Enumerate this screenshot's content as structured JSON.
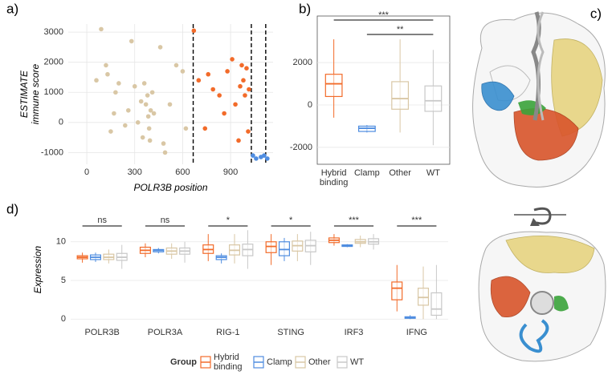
{
  "chart_data": [
    {
      "type": "scatter",
      "panel_label": "a)",
      "x_label": "POLR3B position",
      "y_label": [
        "ESTIMATE",
        "immune score"
      ],
      "xlim": [
        -116,
        1166
      ],
      "ylim": [
        -1390,
        3270
      ],
      "xticks": [
        0,
        300,
        600,
        900
      ],
      "yticks": [
        -1000,
        0,
        1000,
        2000,
        3000
      ],
      "grid": true,
      "vlines": [
        666,
        1030,
        1120
      ],
      "series": [
        {
          "color": "#d9c7a5",
          "x": [
            60,
            90,
            120,
            130,
            150,
            170,
            180,
            200,
            240,
            260,
            280,
            300,
            320,
            340,
            350,
            360,
            370,
            380,
            385,
            390,
            395,
            400,
            410,
            420,
            460,
            480,
            490,
            520,
            560,
            600,
            620
          ],
          "values": [
            1400,
            3100,
            1900,
            1600,
            -300,
            300,
            1000,
            1300,
            -100,
            400,
            2700,
            1200,
            0,
            700,
            -500,
            1300,
            600,
            900,
            200,
            -200,
            -600,
            400,
            1000,
            300,
            2500,
            -700,
            -1000,
            600,
            1900,
            1700,
            -200
          ]
        },
        {
          "color": "#f26b2a",
          "x": [
            670,
            700,
            740,
            760,
            790,
            830,
            860,
            880,
            910,
            930,
            950,
            960,
            970,
            980,
            990,
            1000,
            1010,
            1015
          ],
          "values": [
            3050,
            1400,
            -200,
            1600,
            1100,
            900,
            300,
            1700,
            2100,
            600,
            -600,
            1200,
            1900,
            1400,
            900,
            1800,
            -300,
            1100
          ]
        },
        {
          "color": "#4f8de0",
          "x": [
            1040,
            1060,
            1090,
            1110,
            1130
          ],
          "values": [
            -1100,
            -1200,
            -1150,
            -1100,
            -1200
          ]
        }
      ]
    },
    {
      "type": "box",
      "panel_label": "b)",
      "categories": [
        "Hybrid binding",
        "Clamp",
        "Other",
        "WT"
      ],
      "colors": [
        "#f26b2a",
        "#4f8de0",
        "#d9c7a5",
        "#c8c8c8"
      ],
      "values": [
        [
          -600,
          400,
          1000,
          1450,
          3100
        ],
        [
          -1300,
          -1250,
          -1100,
          -1000,
          -950
        ],
        [
          -1300,
          -200,
          300,
          1100,
          3100
        ],
        [
          -1900,
          -300,
          200,
          900,
          2600
        ]
      ],
      "ylim": [
        -2800,
        4200
      ],
      "yticks": [
        -2000,
        0,
        2000
      ],
      "grid": true,
      "significance": [
        {
          "label": "***",
          "groups": [
            "Hybrid binding",
            "WT"
          ]
        },
        {
          "label": "**",
          "groups": [
            "Clamp",
            "WT"
          ]
        }
      ]
    },
    {
      "type": "box",
      "panel_label": "d)",
      "y_label": "Expression",
      "categories": [
        "POLR3B",
        "POLR3A",
        "RIG-1",
        "STING",
        "IRF3",
        "IFNG"
      ],
      "ylim": [
        -0.7,
        13.5
      ],
      "yticks": [
        0,
        5,
        10
      ],
      "grid": true,
      "legend_title": "Group",
      "legend": "bottom",
      "significance": [
        "ns",
        "ns",
        "*",
        "*",
        "***",
        "***"
      ],
      "series": [
        {
          "name": "Hybrid binding",
          "color": "#f26b2a",
          "values": [
            [
              7.3,
              7.8,
              8,
              8.2,
              8.6
            ],
            [
              8,
              8.5,
              8.9,
              9.3,
              9.8
            ],
            [
              7.5,
              8.5,
              9,
              9.6,
              11
            ],
            [
              7,
              8.6,
              9.4,
              10,
              11
            ],
            [
              9.5,
              9.9,
              10.2,
              10.5,
              11
            ],
            [
              1,
              2.5,
              4,
              4.8,
              7
            ]
          ]
        },
        {
          "name": "Clamp",
          "color": "#4f8de0",
          "values": [
            [
              7.4,
              7.7,
              8,
              8.3,
              8.6
            ],
            [
              8.5,
              8.7,
              8.9,
              9,
              9.2
            ],
            [
              7.2,
              7.7,
              8,
              8.2,
              8.5
            ],
            [
              7.5,
              8.2,
              9,
              10,
              10.5
            ],
            [
              9.3,
              9.4,
              9.5,
              9.6,
              9.7
            ],
            [
              0,
              0.1,
              0.2,
              0.3,
              0.5
            ]
          ]
        },
        {
          "name": "Other",
          "color": "#d9c7a5",
          "values": [
            [
              7.2,
              7.7,
              8,
              8.4,
              9
            ],
            [
              7.8,
              8.4,
              8.8,
              9.2,
              9.8
            ],
            [
              7.2,
              8.3,
              8.9,
              9.6,
              11
            ],
            [
              7.5,
              8.8,
              9.5,
              10.1,
              11
            ],
            [
              9.3,
              9.8,
              10,
              10.3,
              10.8
            ],
            [
              0,
              1.8,
              2.8,
              4,
              6.8
            ]
          ]
        },
        {
          "name": "WT",
          "color": "#c8c8c8",
          "values": [
            [
              6.5,
              7.6,
              8,
              8.5,
              9.6
            ],
            [
              7.3,
              8.4,
              8.8,
              9.2,
              10
            ],
            [
              6.5,
              8.2,
              9,
              9.7,
              11.5
            ],
            [
              7,
              8.7,
              9.5,
              10.2,
              11.3
            ],
            [
              9,
              9.7,
              10,
              10.4,
              11
            ],
            [
              0,
              0.5,
              1.3,
              3.4,
              7
            ]
          ]
        }
      ]
    }
  ],
  "structure_panel": {
    "panel_label": "c)"
  }
}
